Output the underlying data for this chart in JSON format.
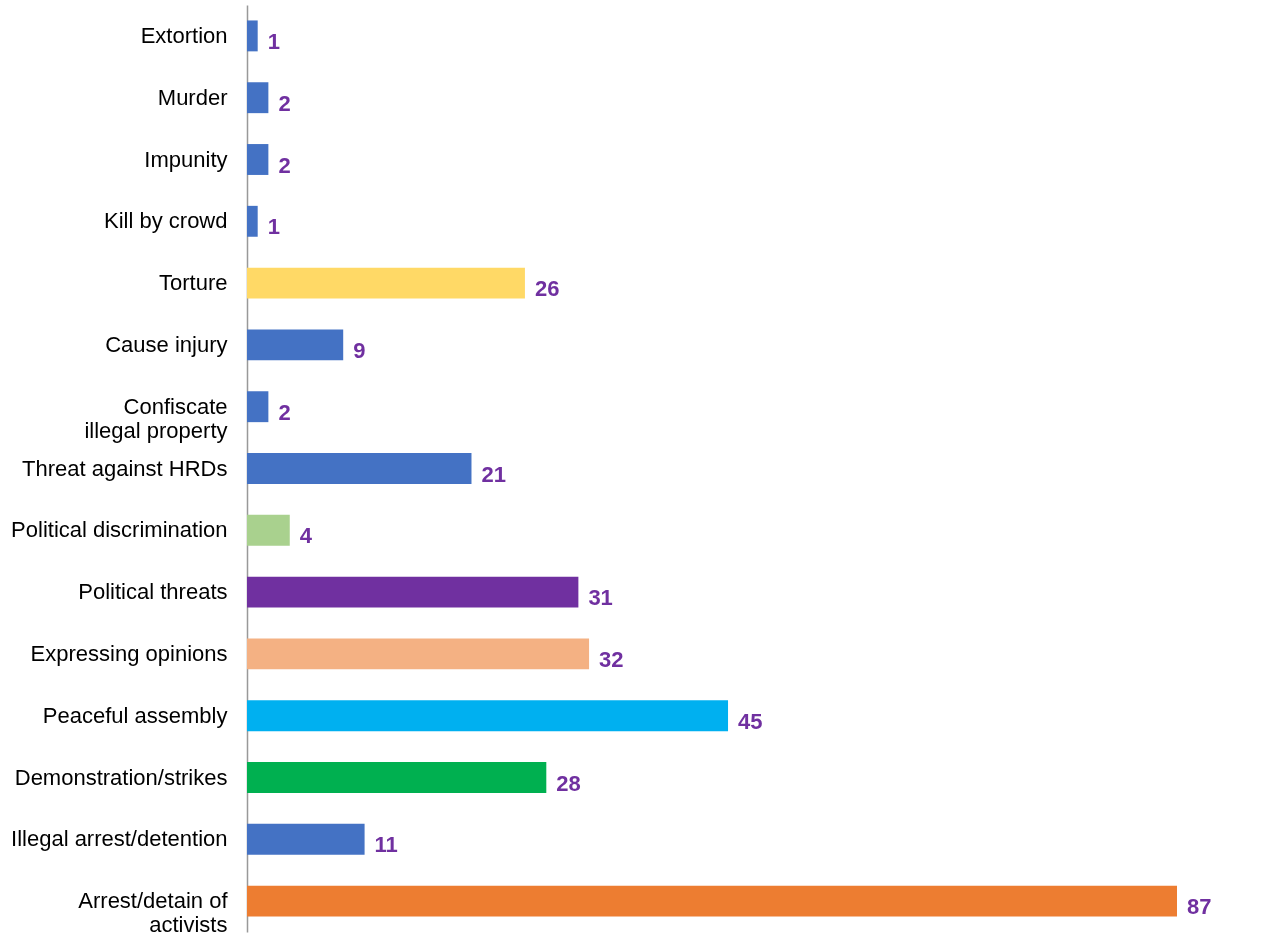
{
  "chart_data": {
    "type": "bar",
    "orientation": "horizontal",
    "data_labels": true,
    "tick_labels": "y",
    "categories": [
      "Extortion",
      "Murder",
      "Impunity",
      "Kill by crowd",
      "Torture",
      "Cause injury",
      "Confiscate illegal property",
      "Threat against HRDs",
      "Political discrimination",
      "Political threats",
      "Expressing opinions",
      "Peaceful assembly",
      "Demonstration/strikes",
      "Illegal arrest/detention",
      "Arrest/detain of activists"
    ],
    "values": [
      1,
      2,
      2,
      1,
      26,
      9,
      2,
      21,
      4,
      31,
      32,
      45,
      28,
      11,
      87
    ],
    "colors": [
      "#4472c4",
      "#4472c4",
      "#4472c4",
      "#4472c4",
      "#ffd966",
      "#4472c4",
      "#4472c4",
      "#4472c4",
      "#a9d18e",
      "#7030a0",
      "#f4b183",
      "#00b0f0",
      "#00b050",
      "#4472c4",
      "#ed7d31"
    ]
  }
}
